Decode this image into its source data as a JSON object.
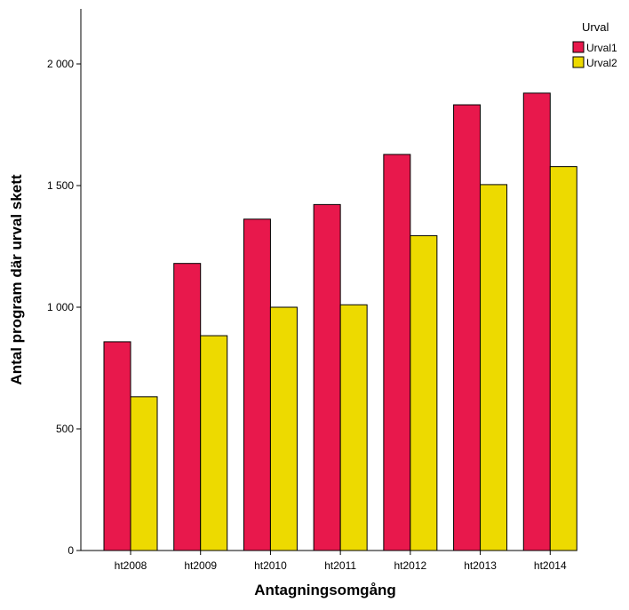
{
  "chart_data": {
    "type": "bar",
    "title": "",
    "xlabel": "Antagningsomgång",
    "ylabel": "Antal program där urval skett",
    "categories": [
      "ht2008",
      "ht2009",
      "ht2010",
      "ht2011",
      "ht2012",
      "ht2013",
      "ht2014"
    ],
    "series": [
      {
        "name": "Urval1",
        "color": "#E8184C",
        "values": [
          858,
          1180,
          1362,
          1422,
          1628,
          1832,
          1880
        ]
      },
      {
        "name": "Urval2",
        "color": "#EDDA00",
        "values": [
          632,
          883,
          1000,
          1010,
          1294,
          1504,
          1578
        ]
      }
    ],
    "ylim": [
      0,
      2240
    ],
    "yticks": [
      0,
      500,
      1000,
      1500,
      2000
    ],
    "ytick_labels": [
      "0",
      "500",
      "1 000",
      "1 500",
      "2 000"
    ],
    "grid": false,
    "legend": {
      "title": "Urval",
      "position": "top-right"
    }
  }
}
